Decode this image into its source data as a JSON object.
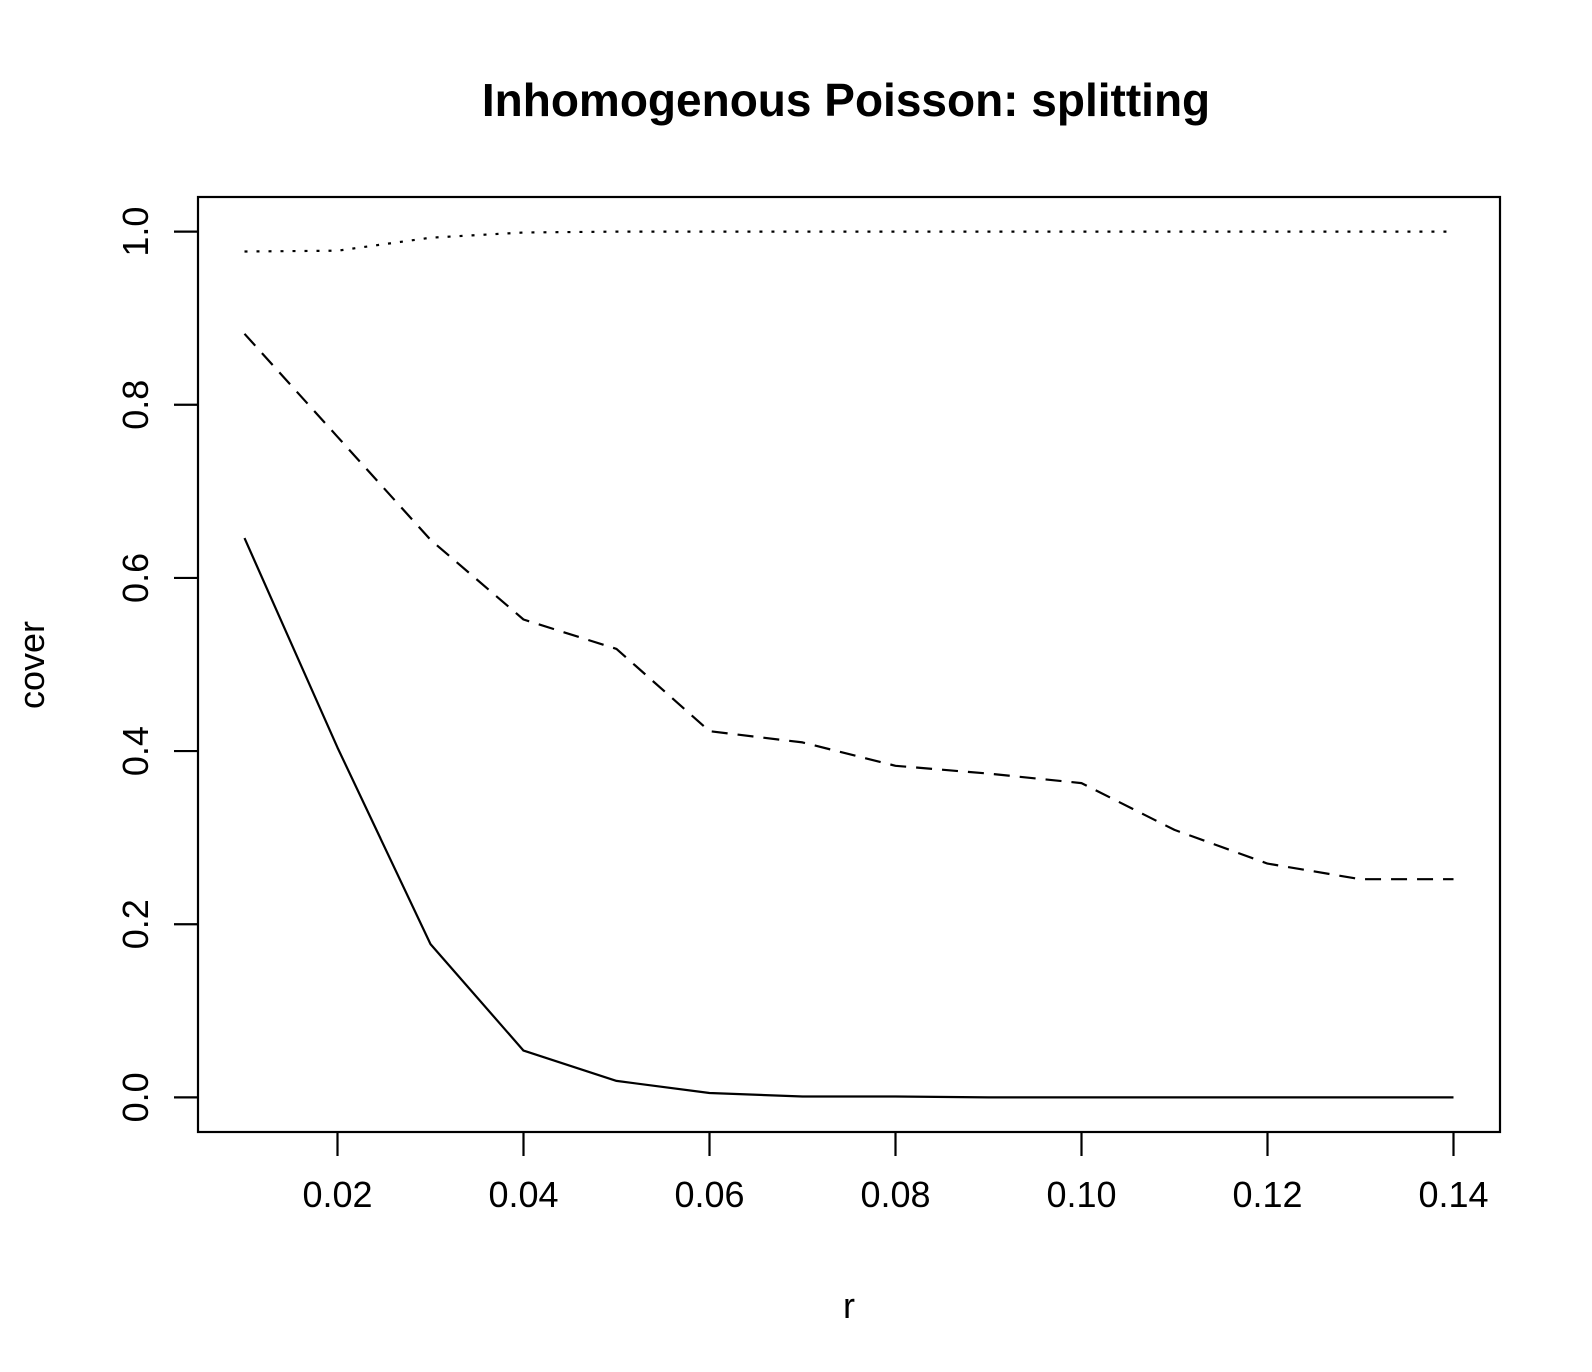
{
  "chart_data": {
    "type": "line",
    "title": "Inhomogenous Poisson: splitting",
    "xlabel": "r",
    "ylabel": "cover",
    "xlim": [
      0.005,
      0.145
    ],
    "ylim": [
      -0.04,
      1.04
    ],
    "xticks": [
      0.02,
      0.04,
      0.06,
      0.08,
      0.1,
      0.12,
      0.14
    ],
    "xtick_labels": [
      "0.02",
      "0.04",
      "0.06",
      "0.08",
      "0.10",
      "0.12",
      "0.14"
    ],
    "yticks": [
      0.0,
      0.2,
      0.4,
      0.6,
      0.8,
      1.0
    ],
    "ytick_labels": [
      "0.0",
      "0.2",
      "0.4",
      "0.6",
      "0.8",
      "1.0"
    ],
    "grid": false,
    "x": [
      0.01,
      0.02,
      0.03,
      0.04,
      0.05,
      0.06,
      0.07,
      0.08,
      0.09,
      0.1,
      0.11,
      0.12,
      0.13,
      0.14
    ],
    "series": [
      {
        "line_style": "solid",
        "values": [
          0.646,
          0.404,
          0.177,
          0.054,
          0.019,
          0.005,
          0.001,
          0.001,
          0.0,
          0.0,
          0.0,
          0.0,
          0.0,
          0.0
        ]
      },
      {
        "line_style": "dashed",
        "values": [
          0.882,
          0.763,
          0.644,
          0.552,
          0.518,
          0.423,
          0.41,
          0.383,
          0.374,
          0.363,
          0.309,
          0.27,
          0.252,
          0.252
        ]
      },
      {
        "line_style": "dotted",
        "values": [
          0.977,
          0.978,
          0.993,
          0.999,
          1.0,
          1.0,
          1.0,
          1.0,
          1.0,
          1.0,
          1.0,
          1.0,
          1.0,
          1.0
        ]
      }
    ]
  }
}
